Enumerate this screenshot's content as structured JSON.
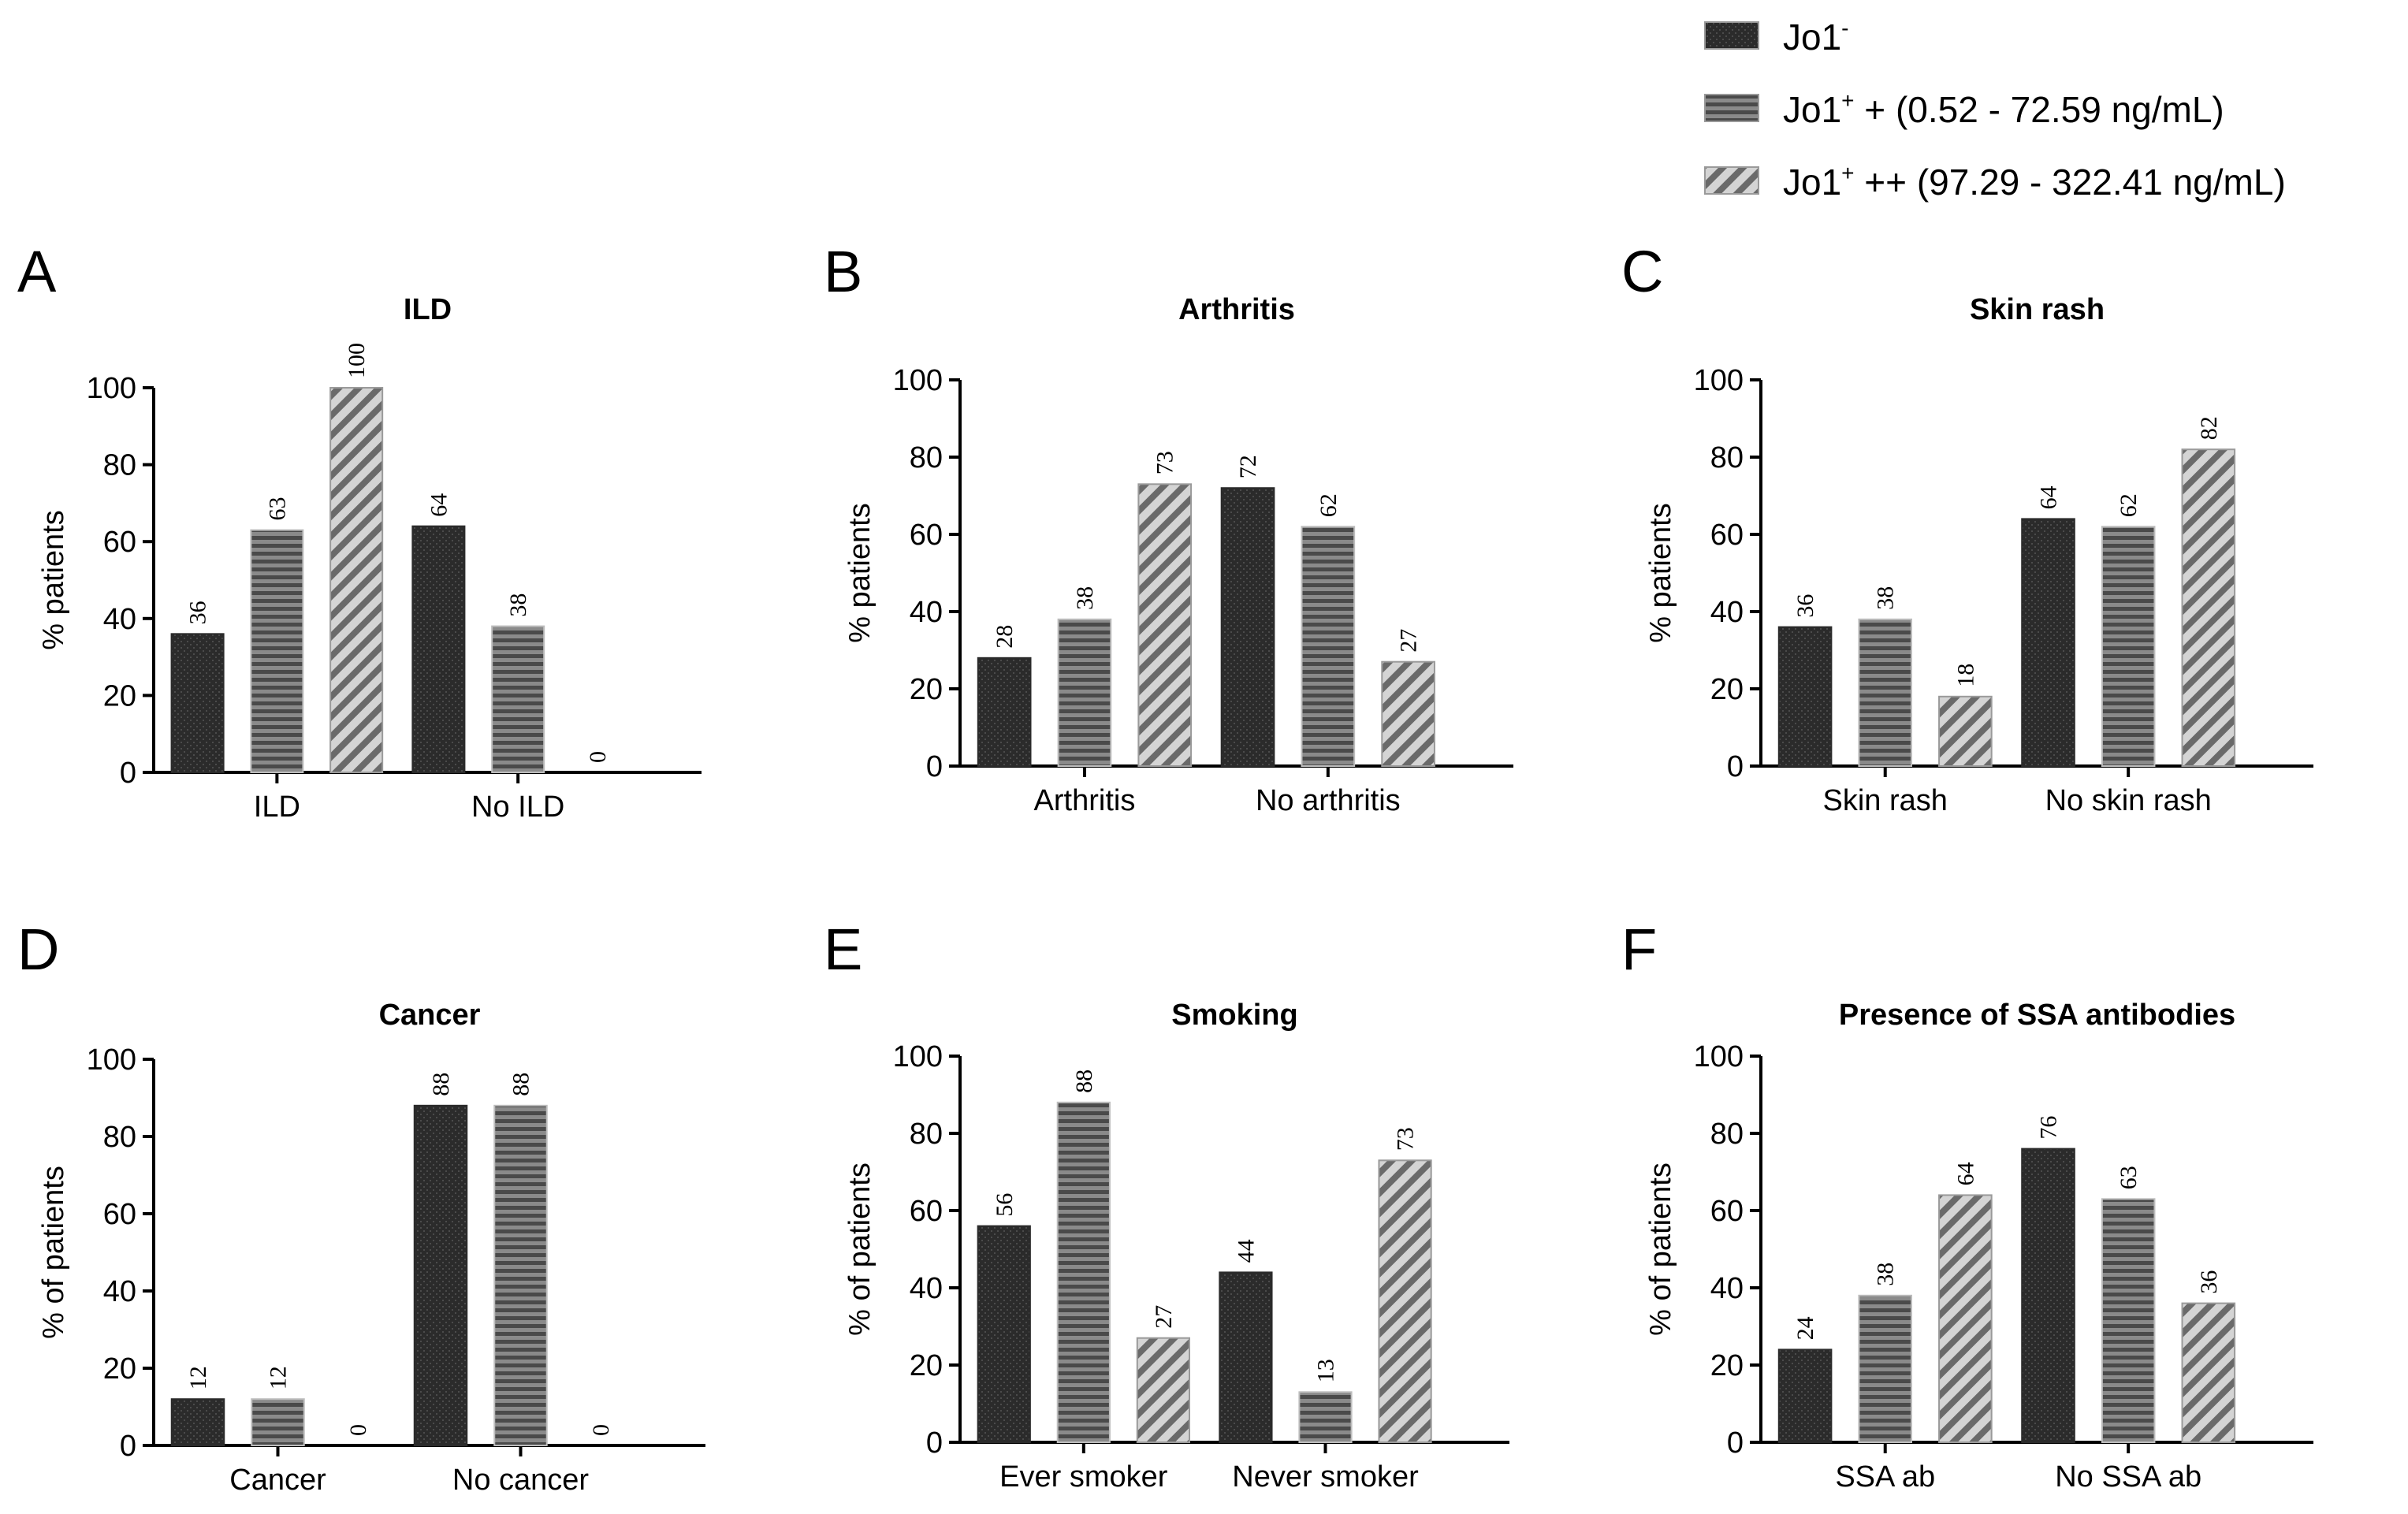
{
  "legend": {
    "items": [
      {
        "base": "Jo1",
        "sup": "-",
        "rest": "",
        "pattern": "dots"
      },
      {
        "base": "Jo1",
        "sup": "+",
        "rest": " + (0.52 - 72.59 ng/mL)",
        "pattern": "hstripes"
      },
      {
        "base": "Jo1",
        "sup": "+",
        "rest": " ++ (97.29 - 322.41 ng/mL)",
        "pattern": "diagonal"
      }
    ]
  },
  "colors": {
    "dark": "#2b2b2b",
    "stripes_bg": "#8a8a8a",
    "stripes_fg": "#4a4a4a",
    "diag_bg": "#d4d4d4",
    "diag_fg": "#6a6a6a",
    "axis": "#000000"
  },
  "chart_data": [
    {
      "panel": "A",
      "type": "bar",
      "title": "ILD",
      "ylabel": "% patients",
      "xlabel": "",
      "ylim": [
        0,
        100
      ],
      "yticks": [
        0,
        20,
        40,
        60,
        80,
        100
      ],
      "categories": [
        "ILD",
        "No ILD"
      ],
      "series": [
        {
          "name": "Jo1-",
          "values": [
            36,
            64
          ]
        },
        {
          "name": "Jo1+ +",
          "values": [
            63,
            38
          ]
        },
        {
          "name": "Jo1+ ++",
          "values": [
            100,
            0
          ]
        }
      ]
    },
    {
      "panel": "B",
      "type": "bar",
      "title": "Arthritis",
      "ylabel": "% patients",
      "xlabel": "",
      "ylim": [
        0,
        100
      ],
      "yticks": [
        0,
        20,
        40,
        60,
        80,
        100
      ],
      "categories": [
        "Arthritis",
        "No arthritis"
      ],
      "series": [
        {
          "name": "Jo1-",
          "values": [
            28,
            72
          ]
        },
        {
          "name": "Jo1+ +",
          "values": [
            38,
            62
          ]
        },
        {
          "name": "Jo1+ ++",
          "values": [
            73,
            27
          ]
        }
      ]
    },
    {
      "panel": "C",
      "type": "bar",
      "title": "Skin rash",
      "ylabel": "% patients",
      "xlabel": "",
      "ylim": [
        0,
        100
      ],
      "yticks": [
        0,
        20,
        40,
        60,
        80,
        100
      ],
      "categories": [
        "Skin rash",
        "No skin rash"
      ],
      "series": [
        {
          "name": "Jo1-",
          "values": [
            36,
            64
          ]
        },
        {
          "name": "Jo1+ +",
          "values": [
            38,
            62
          ]
        },
        {
          "name": "Jo1+ ++",
          "values": [
            18,
            82
          ]
        }
      ]
    },
    {
      "panel": "D",
      "type": "bar",
      "title": "Cancer",
      "ylabel": "% of patients",
      "xlabel": "",
      "ylim": [
        0,
        100
      ],
      "yticks": [
        0,
        20,
        40,
        60,
        80,
        100
      ],
      "categories": [
        "Cancer",
        "No cancer"
      ],
      "series": [
        {
          "name": "Jo1-",
          "values": [
            12,
            88
          ]
        },
        {
          "name": "Jo1+ +",
          "values": [
            12,
            88
          ]
        },
        {
          "name": "Jo1+ ++",
          "values": [
            0,
            0
          ]
        }
      ]
    },
    {
      "panel": "E",
      "type": "bar",
      "title": "Smoking",
      "ylabel": "% of patients",
      "xlabel": "",
      "ylim": [
        0,
        100
      ],
      "yticks": [
        0,
        20,
        40,
        60,
        80,
        100
      ],
      "categories": [
        "Ever smoker",
        "Never smoker"
      ],
      "series": [
        {
          "name": "Jo1-",
          "values": [
            56,
            44
          ]
        },
        {
          "name": "Jo1+ +",
          "values": [
            88,
            13
          ]
        },
        {
          "name": "Jo1+ ++",
          "values": [
            27,
            73
          ]
        }
      ]
    },
    {
      "panel": "F",
      "type": "bar",
      "title": "Presence of SSA antibodies",
      "ylabel": "% of patients",
      "xlabel": "",
      "ylim": [
        0,
        100
      ],
      "yticks": [
        0,
        20,
        40,
        60,
        80,
        100
      ],
      "categories": [
        "SSA ab",
        "No SSA ab"
      ],
      "series": [
        {
          "name": "Jo1-",
          "values": [
            24,
            76
          ]
        },
        {
          "name": "Jo1+ +",
          "values": [
            38,
            63
          ]
        },
        {
          "name": "Jo1+ ++",
          "values": [
            64,
            36
          ]
        }
      ]
    }
  ]
}
